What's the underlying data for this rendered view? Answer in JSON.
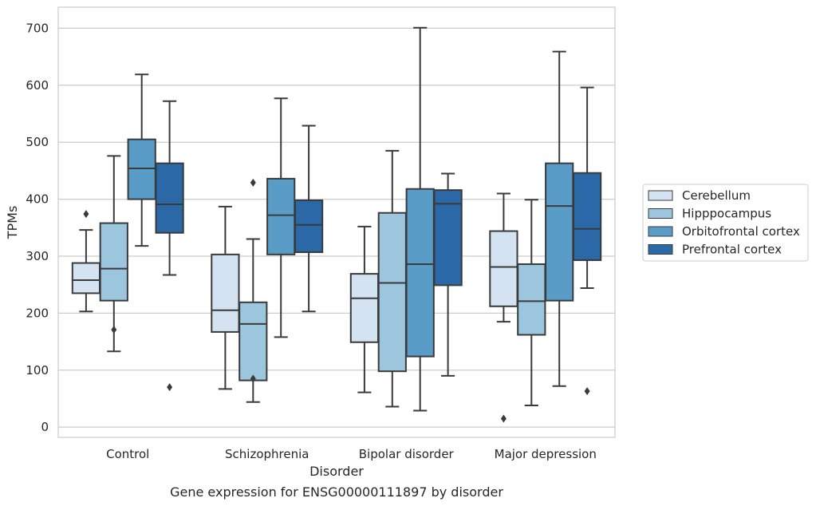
{
  "chart_data": {
    "type": "boxplot",
    "xlabel": "Disorder",
    "ylabel": "TPMs",
    "caption": "Gene expression for ENSG00000111897 by disorder",
    "ylim": [
      -18,
      737
    ],
    "yticks": [
      0,
      100,
      200,
      300,
      400,
      500,
      600,
      700
    ],
    "grid": "horizontal",
    "legend_position": "right",
    "categories": [
      "Control",
      "Schizophrenia",
      "Bipolar disorder",
      "Major depression"
    ],
    "series": [
      {
        "name": "Cerebellum",
        "color": "#d3e3f2",
        "boxes": [
          {
            "whisker_low": 203,
            "q1": 235,
            "median": 258,
            "q3": 288,
            "whisker_high": 346,
            "outliers": [
              374
            ]
          },
          {
            "whisker_low": 67,
            "q1": 167,
            "median": 205,
            "q3": 303,
            "whisker_high": 387,
            "outliers": []
          },
          {
            "whisker_low": 61,
            "q1": 149,
            "median": 226,
            "q3": 269,
            "whisker_high": 352,
            "outliers": []
          },
          {
            "whisker_low": 185,
            "q1": 212,
            "median": 281,
            "q3": 344,
            "whisker_high": 410,
            "outliers": [
              15
            ]
          }
        ]
      },
      {
        "name": "Hipppocampus",
        "color": "#9cc5de",
        "boxes": [
          {
            "whisker_low": 133,
            "q1": 222,
            "median": 278,
            "q3": 358,
            "whisker_high": 476,
            "outliers": [
              171
            ]
          },
          {
            "whisker_low": 44,
            "q1": 82,
            "median": 181,
            "q3": 219,
            "whisker_high": 330,
            "outliers": [
              85,
              429
            ]
          },
          {
            "whisker_low": 36,
            "q1": 98,
            "median": 253,
            "q3": 376,
            "whisker_high": 485,
            "outliers": []
          },
          {
            "whisker_low": 38,
            "q1": 162,
            "median": 221,
            "q3": 286,
            "whisker_high": 399,
            "outliers": []
          }
        ]
      },
      {
        "name": "Orbitofrontal cortex",
        "color": "#5a9cc8",
        "boxes": [
          {
            "whisker_low": 318,
            "q1": 400,
            "median": 454,
            "q3": 505,
            "whisker_high": 619,
            "outliers": []
          },
          {
            "whisker_low": 158,
            "q1": 303,
            "median": 372,
            "q3": 436,
            "whisker_high": 577,
            "outliers": []
          },
          {
            "whisker_low": 29,
            "q1": 124,
            "median": 286,
            "q3": 418,
            "whisker_high": 701,
            "outliers": []
          },
          {
            "whisker_low": 72,
            "q1": 222,
            "median": 388,
            "q3": 463,
            "whisker_high": 659,
            "outliers": []
          }
        ]
      },
      {
        "name": "Prefrontal cortex",
        "color": "#2a68a8",
        "boxes": [
          {
            "whisker_low": 267,
            "q1": 341,
            "median": 391,
            "q3": 463,
            "whisker_high": 572,
            "outliers": [
              70
            ]
          },
          {
            "whisker_low": 203,
            "q1": 307,
            "median": 355,
            "q3": 398,
            "whisker_high": 529,
            "outliers": []
          },
          {
            "whisker_low": 90,
            "q1": 249,
            "median": 392,
            "q3": 416,
            "whisker_high": 445,
            "outliers": []
          },
          {
            "whisker_low": 244,
            "q1": 293,
            "median": 348,
            "q3": 446,
            "whisker_high": 596,
            "outliers": [
              63
            ]
          }
        ]
      }
    ]
  }
}
